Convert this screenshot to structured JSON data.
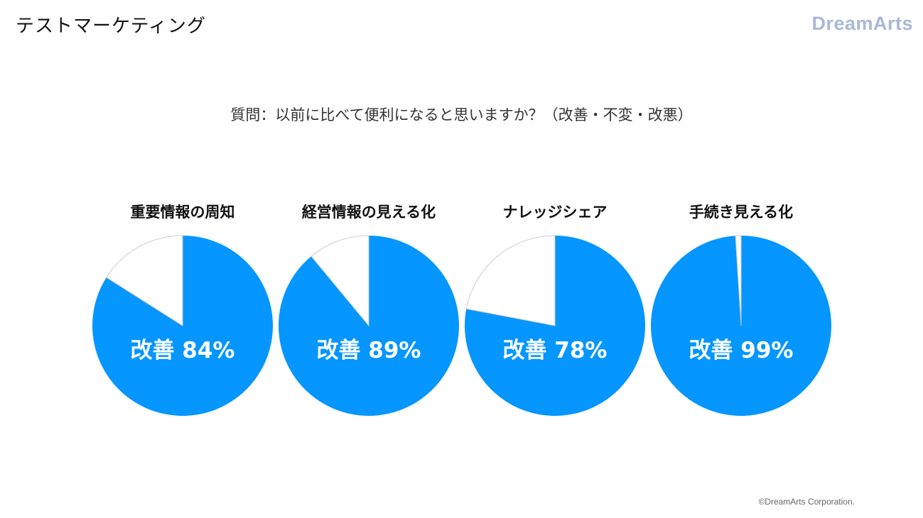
{
  "header": {
    "title": "テストマーケティング",
    "logo_text": "DreamArts"
  },
  "question": "質問：以前に比べて便利になると思いますか？（改善・不変・改悪）",
  "footer": {
    "copyright": "©DreamArts Corporation."
  },
  "colors": {
    "improved": "#0596ff",
    "other": "#ffffff",
    "border": "#cccccc"
  },
  "chart_data": [
    {
      "type": "pie",
      "title": "重要情報の周知",
      "slices": [
        {
          "value": 84
        },
        {
          "value": 16
        }
      ],
      "label": "改善 84%"
    },
    {
      "type": "pie",
      "title": "経営情報の見える化",
      "slices": [
        {
          "value": 89
        },
        {
          "value": 11
        }
      ],
      "label": "改善 89%"
    },
    {
      "type": "pie",
      "title": "ナレッジシェア",
      "slices": [
        {
          "value": 78
        },
        {
          "value": 22
        }
      ],
      "label": "改善 78%"
    },
    {
      "type": "pie",
      "title": "手続き見える化",
      "slices": [
        {
          "value": 99
        },
        {
          "value": 1
        }
      ],
      "label": "改善 99%"
    }
  ]
}
